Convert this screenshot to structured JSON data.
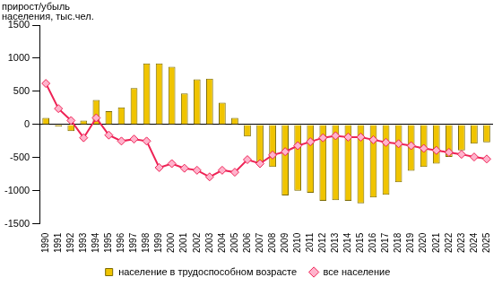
{
  "chart_data": {
    "type": "bar",
    "y_label": "прирост/убыль населения, тыс.чел.",
    "categories": [
      "1990",
      "1991",
      "1992",
      "1993",
      "1994",
      "1995",
      "1996",
      "1997",
      "1998",
      "1999",
      "2000",
      "2001",
      "2002",
      "2003",
      "2004",
      "2005",
      "2006",
      "2007",
      "2008",
      "2009",
      "2010",
      "2011",
      "2012",
      "2013",
      "2014",
      "2015",
      "2016",
      "2017",
      "2018",
      "2019",
      "2020",
      "2021",
      "2022",
      "2023",
      "2024",
      "2025"
    ],
    "series": [
      {
        "name": "население в трудоспособном возрасте",
        "type": "bar",
        "color": "#f0c400",
        "values": [
          100,
          -30,
          -100,
          60,
          370,
          200,
          260,
          550,
          920,
          920,
          870,
          470,
          680,
          690,
          330,
          100,
          -180,
          -600,
          -640,
          -1070,
          -1000,
          -1030,
          -1150,
          -1140,
          -1150,
          -1190,
          -1100,
          -1060,
          -870,
          -700,
          -640,
          -590,
          -490,
          -390,
          -290,
          -270
        ]
      },
      {
        "name": "все население",
        "type": "line",
        "color": "#ee2255",
        "marker": "diamond",
        "values": [
          620,
          240,
          60,
          -200,
          100,
          -160,
          -250,
          -220,
          -250,
          -650,
          -590,
          -660,
          -690,
          -790,
          -690,
          -720,
          -530,
          -590,
          -460,
          -410,
          -320,
          -260,
          -200,
          -170,
          -190,
          -190,
          -230,
          -270,
          -290,
          -320,
          -360,
          -390,
          -420,
          -450,
          -490,
          -520
        ]
      }
    ],
    "ylim": [
      -1500,
      1500
    ],
    "yticks": [
      -1500,
      -1000,
      -500,
      0,
      500,
      1000,
      1500
    ],
    "grid": false,
    "legend": "bottom"
  }
}
